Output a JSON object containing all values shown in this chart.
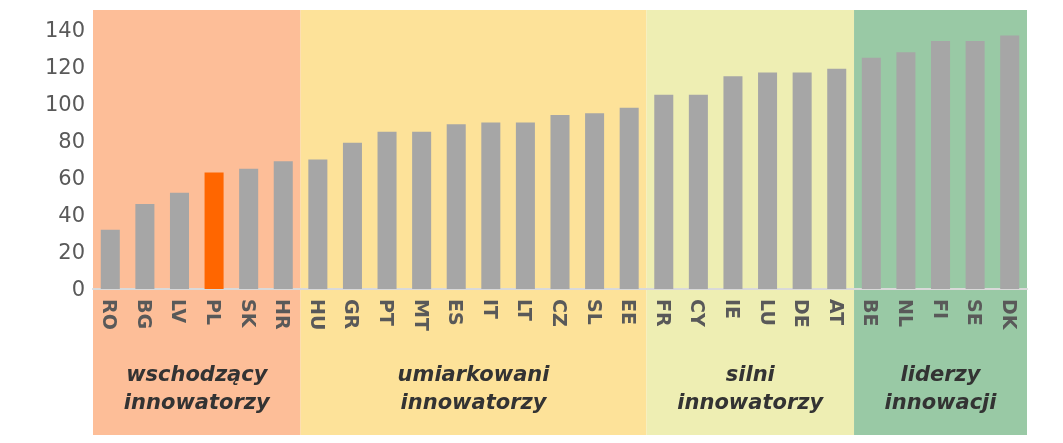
{
  "chart_data": {
    "type": "bar",
    "categories": [
      "RO",
      "BG",
      "LV",
      "PL",
      "SK",
      "HR",
      "HU",
      "GR",
      "PT",
      "MT",
      "ES",
      "IT",
      "LT",
      "CZ",
      "SL",
      "EE",
      "FR",
      "CY",
      "IE",
      "LU",
      "DE",
      "AT",
      "BE",
      "NL",
      "FI",
      "SE",
      "DK"
    ],
    "values": [
      32,
      46,
      52,
      63,
      65,
      69,
      70,
      79,
      85,
      85,
      89,
      90,
      90,
      94,
      95,
      98,
      105,
      105,
      115,
      117,
      117,
      119,
      125,
      128,
      134,
      134,
      137
    ],
    "colors": [
      "#a6a6a6",
      "#a6a6a6",
      "#a6a6a6",
      "#ff6600",
      "#a6a6a6",
      "#a6a6a6",
      "#a6a6a6",
      "#a6a6a6",
      "#a6a6a6",
      "#a6a6a6",
      "#a6a6a6",
      "#a6a6a6",
      "#a6a6a6",
      "#a6a6a6",
      "#a6a6a6",
      "#a6a6a6",
      "#a6a6a6",
      "#a6a6a6",
      "#a6a6a6",
      "#a6a6a6",
      "#a6a6a6",
      "#a6a6a6",
      "#a6a6a6",
      "#a6a6a6",
      "#a6a6a6",
      "#a6a6a6",
      "#a6a6a6"
    ],
    "ylim": [
      0,
      140
    ],
    "yticks": [
      0,
      20,
      40,
      60,
      80,
      100,
      120,
      140
    ],
    "grid": false,
    "bands": [
      {
        "axis": "x",
        "from": "RO",
        "to": "HR",
        "label": "wschodzący innowatorzy",
        "color": "#fdbe98"
      },
      {
        "axis": "x",
        "from": "HU",
        "to": "EE",
        "label": "umiarkowani innowatorzy",
        "color": "#fde299"
      },
      {
        "axis": "x",
        "from": "FR",
        "to": "AT",
        "label": "silni innowatorzy",
        "color": "#eeeeb3"
      },
      {
        "axis": "x",
        "from": "BE",
        "to": "DK",
        "label": "liderzy innowacji",
        "color": "#99c9a5"
      }
    ]
  }
}
